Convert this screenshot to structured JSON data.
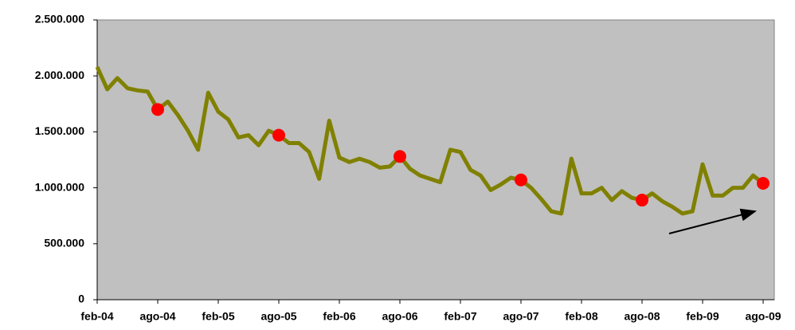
{
  "chart_data": {
    "type": "line",
    "categories": [
      "feb-04",
      null,
      null,
      null,
      null,
      null,
      "ago-04",
      null,
      null,
      null,
      null,
      null,
      "feb-05",
      null,
      null,
      null,
      null,
      null,
      "ago-05",
      null,
      null,
      null,
      null,
      null,
      "feb-06",
      null,
      null,
      null,
      null,
      null,
      "ago-06",
      null,
      null,
      null,
      null,
      null,
      "feb-07",
      null,
      null,
      null,
      null,
      null,
      "ago-07",
      null,
      null,
      null,
      null,
      null,
      "feb-08",
      null,
      null,
      null,
      null,
      null,
      "ago-08",
      null,
      null,
      null,
      null,
      null,
      "feb-09",
      null,
      null,
      null,
      null,
      null,
      "ago-09"
    ],
    "series": [
      {
        "color": "#808000",
        "values": [
          2080000,
          1880000,
          1980000,
          1890000,
          1870000,
          1860000,
          1700000,
          1770000,
          1650000,
          1510000,
          1340000,
          1850000,
          1680000,
          1610000,
          1450000,
          1470000,
          1380000,
          1510000,
          1470000,
          1400000,
          1400000,
          1320000,
          1080000,
          1600000,
          1270000,
          1230000,
          1260000,
          1230000,
          1180000,
          1190000,
          1280000,
          1170000,
          1110000,
          1080000,
          1050000,
          1340000,
          1320000,
          1160000,
          1110000,
          980000,
          1030000,
          1090000,
          1070000,
          1000000,
          900000,
          790000,
          770000,
          1260000,
          950000,
          950000,
          1000000,
          890000,
          970000,
          910000,
          890000,
          950000,
          880000,
          830000,
          770000,
          790000,
          1210000,
          930000,
          930000,
          1000000,
          1000000,
          1110000,
          1040000
        ]
      },
      {
        "color": "#ff0000",
        "markers_only": true,
        "values": [
          null,
          null,
          null,
          null,
          null,
          null,
          1700000,
          null,
          null,
          null,
          null,
          null,
          null,
          null,
          null,
          null,
          null,
          null,
          1470000,
          null,
          null,
          null,
          null,
          null,
          null,
          null,
          null,
          null,
          null,
          null,
          1280000,
          null,
          null,
          null,
          null,
          null,
          null,
          null,
          null,
          null,
          null,
          null,
          1070000,
          null,
          null,
          null,
          null,
          null,
          null,
          null,
          null,
          null,
          null,
          null,
          890000,
          null,
          null,
          null,
          null,
          null,
          null,
          null,
          null,
          null,
          null,
          null,
          1040000
        ]
      }
    ],
    "ylim": [
      0,
      2500000
    ],
    "yticks": [
      0,
      {
        "value": 500000,
        "label": "500.000"
      },
      {
        "value": 1000000,
        "label": "1.000.000"
      },
      {
        "value": 1500000,
        "label": "1.500.000"
      },
      {
        "value": 2000000,
        "label": "2.000.000"
      },
      {
        "value": 2500000,
        "label": "2.500.000"
      }
    ],
    "plot_background": "#c0c0c0"
  }
}
